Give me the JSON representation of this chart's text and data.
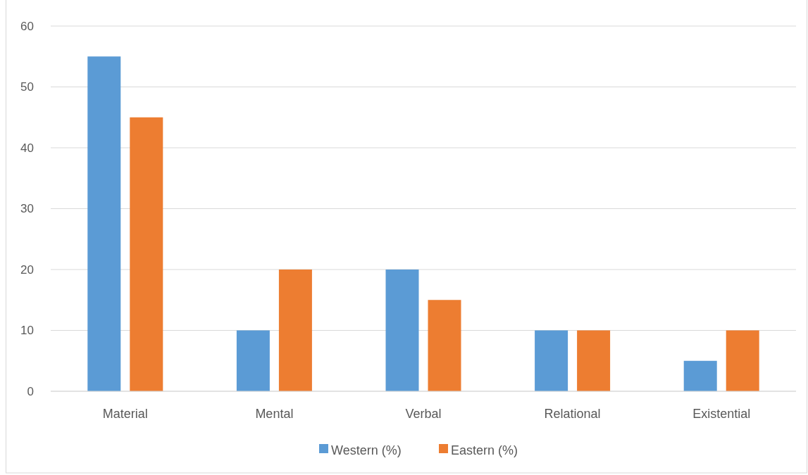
{
  "chart_data": {
    "type": "bar",
    "categories": [
      "Material",
      "Mental",
      "Verbal",
      "Relational",
      "Existential"
    ],
    "series": [
      {
        "name": "Western (%)",
        "color": "#5b9bd5",
        "values": [
          55,
          10,
          20,
          10,
          5
        ]
      },
      {
        "name": "Eastern (%)",
        "color": "#ed7d31",
        "values": [
          45,
          20,
          15,
          10,
          10
        ]
      }
    ],
    "ylim": [
      0,
      60
    ],
    "yticks": [
      0,
      10,
      20,
      30,
      40,
      50,
      60
    ],
    "grid": "y",
    "legend": "bottom"
  }
}
